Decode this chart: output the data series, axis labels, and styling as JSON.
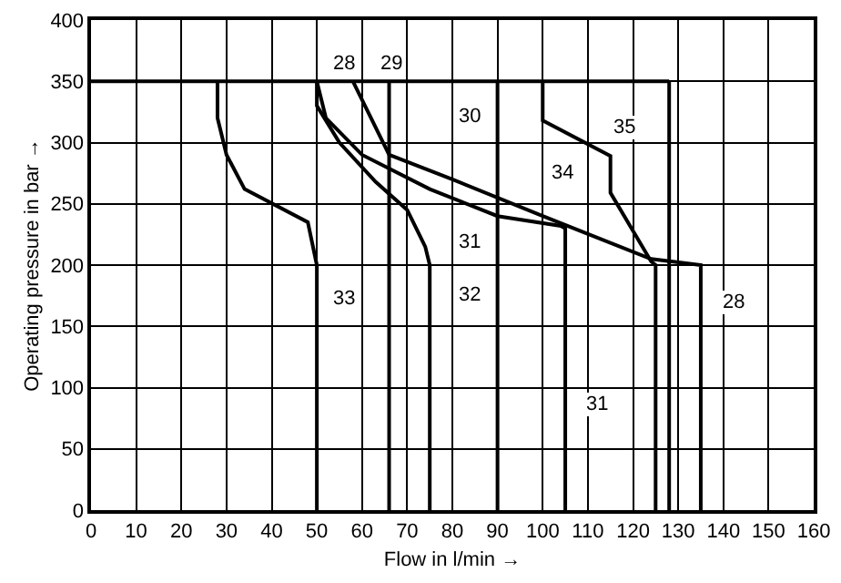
{
  "chart_data": {
    "type": "line",
    "xlabel": "Flow in l/min →",
    "ylabel": "Operating pressure in bar →",
    "xlim": [
      0,
      160
    ],
    "xticks": [
      0,
      10,
      20,
      30,
      40,
      50,
      60,
      70,
      80,
      90,
      100,
      110,
      120,
      130,
      140,
      150,
      160
    ],
    "ylim": [
      0,
      400
    ],
    "yticks": [
      0,
      50,
      100,
      150,
      200,
      250,
      300,
      350,
      400
    ],
    "grid": true,
    "marker": "none",
    "line_style": "solid",
    "series": [
      {
        "color": "#000000",
        "x": [
          0,
          128
        ],
        "values": [
          350,
          350
        ]
      },
      {
        "color": "#000000",
        "x": [
          28,
          28,
          30,
          34,
          48,
          50,
          50
        ],
        "values": [
          350,
          320,
          290,
          262,
          235,
          200,
          0
        ]
      },
      {
        "color": "#000000",
        "x": [
          50,
          50,
          55,
          63,
          70,
          74,
          75,
          75
        ],
        "values": [
          350,
          330,
          300,
          268,
          245,
          215,
          200,
          0
        ]
      },
      {
        "color": "#000000",
        "x": [
          50,
          52,
          60,
          75,
          90,
          104,
          105,
          105
        ],
        "values": [
          350,
          320,
          290,
          262,
          240,
          232,
          230,
          0
        ]
      },
      {
        "color": "#000000",
        "x": [
          58,
          66,
          80,
          100,
          124,
          135,
          135
        ],
        "values": [
          350,
          290,
          270,
          240,
          205,
          200,
          0
        ]
      },
      {
        "color": "#000000",
        "x": [
          66,
          66
        ],
        "values": [
          350,
          0
        ]
      },
      {
        "color": "#000000",
        "x": [
          90,
          90
        ],
        "values": [
          350,
          0
        ]
      },
      {
        "color": "#000000",
        "x": [
          100,
          100,
          115,
          115,
          124,
          125,
          125
        ],
        "values": [
          350,
          318,
          289,
          259,
          203,
          200,
          0
        ]
      },
      {
        "color": "#000000",
        "x": [
          128,
          128
        ],
        "values": [
          350,
          0
        ]
      }
    ],
    "annotations": [
      "28",
      "29",
      "30",
      "35",
      "34",
      "31",
      "32",
      "28",
      "31",
      "33"
    ]
  }
}
